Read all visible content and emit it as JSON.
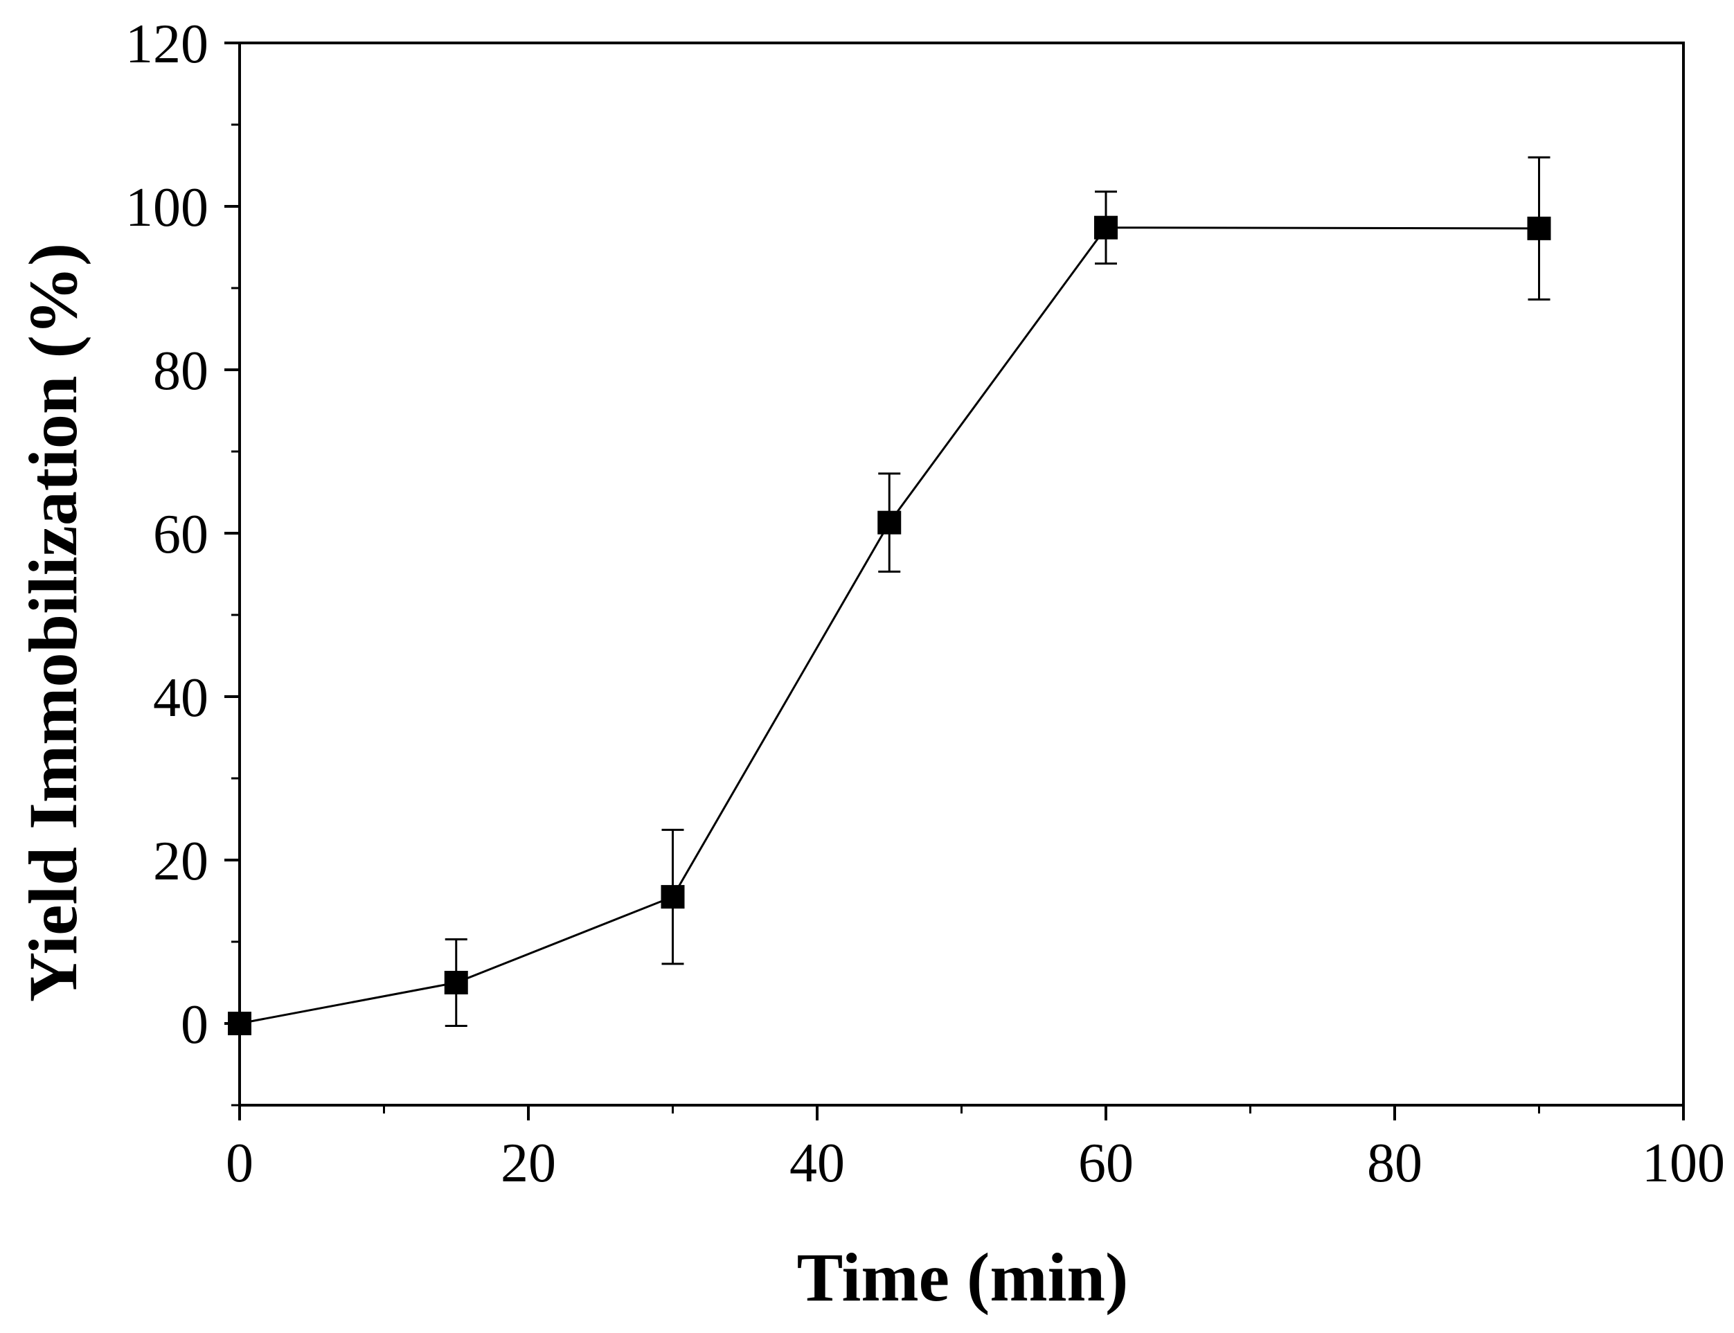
{
  "chart_data": {
    "type": "scatter",
    "title": "",
    "xlabel": "Time (min)",
    "ylabel": "Yield Immobilization (%)",
    "xlim": [
      0,
      100
    ],
    "ylim": [
      -10,
      120
    ],
    "x_ticks": [
      0,
      20,
      40,
      60,
      80,
      100
    ],
    "x_tick_labels": [
      "0",
      "20",
      "40",
      "60",
      "80",
      "100"
    ],
    "y_ticks": [
      0,
      20,
      40,
      60,
      80,
      100,
      120
    ],
    "y_tick_labels": [
      "0",
      "20",
      "40",
      "60",
      "80",
      "100",
      "120"
    ],
    "x_minor_step": 10,
    "y_minor_step": 10,
    "grid": false,
    "legend": "none",
    "marker": "filled-square",
    "connected_by_line": true,
    "colors": {
      "line": "#000000",
      "marker": "#000000",
      "axis": "#000000"
    },
    "series": [
      {
        "x": [
          0,
          15,
          30,
          45,
          60,
          90
        ],
        "y": [
          0,
          5,
          15.5,
          61.3,
          97.4,
          97.3
        ],
        "error": [
          0,
          5.3,
          8.2,
          6.0,
          4.4,
          8.7
        ]
      }
    ]
  }
}
